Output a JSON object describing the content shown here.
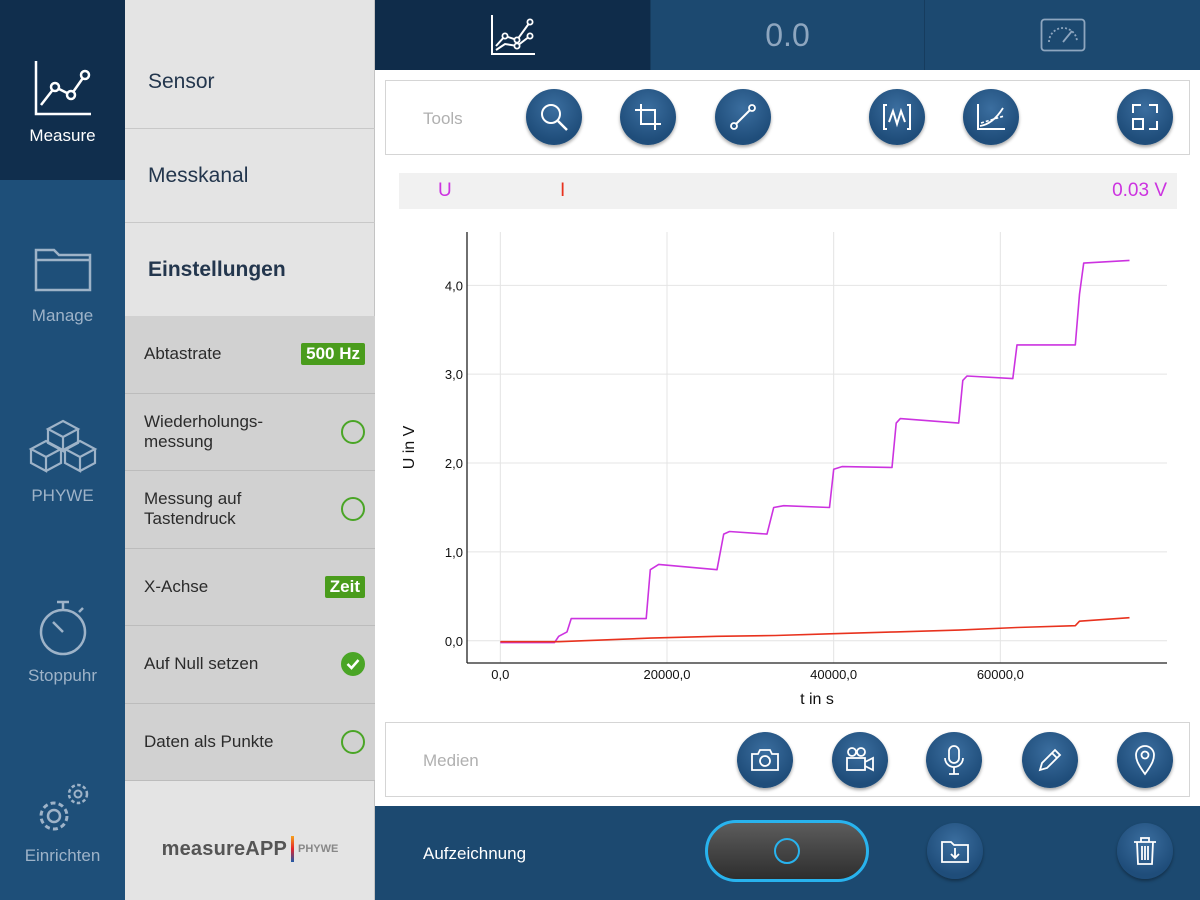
{
  "nav": {
    "items": [
      {
        "label": "Measure",
        "icon": "chart-line-icon",
        "active": true
      },
      {
        "label": "Manage",
        "icon": "folder-icon"
      },
      {
        "label": "PHYWE",
        "icon": "cubes-icon"
      },
      {
        "label": "Stoppuhr",
        "icon": "stopwatch-icon"
      },
      {
        "label": "Einrichten",
        "icon": "gears-icon"
      }
    ]
  },
  "settings": {
    "sections": [
      "Sensor",
      "Messkanal",
      "Einstellungen"
    ],
    "rows": [
      {
        "label": "Abtastrate",
        "badge": "500 Hz"
      },
      {
        "label": "Wiederholungs-\nmessung",
        "checked": false
      },
      {
        "label": "Messung auf\nTastendruck",
        "checked": false
      },
      {
        "label": "X-Achse",
        "badge": "Zeit"
      },
      {
        "label": "Auf Null setzen",
        "checked": true
      },
      {
        "label": "Daten als Punkte",
        "checked": false
      }
    ],
    "logo": {
      "main": "measureAPP",
      "sub": "PHYWE"
    }
  },
  "tabs": {
    "display_value": "0.0",
    "icons": [
      "graph-tab-icon",
      "digital-display-icon",
      "gauge-icon"
    ]
  },
  "tools": {
    "label": "Tools",
    "buttons": [
      "zoom-icon",
      "crop-icon",
      "line-tool-icon",
      "fit-curve-icon",
      "tangent-icon",
      "fullscreen-icon"
    ]
  },
  "media": {
    "label": "Medien",
    "buttons": [
      "camera-icon",
      "video-camera-icon",
      "microphone-icon",
      "pencil-icon",
      "location-pin-icon"
    ]
  },
  "channels": {
    "u": {
      "label": "U",
      "color": "#cc33e0"
    },
    "i": {
      "label": "I",
      "color": "#e8321e"
    },
    "readout": "0.03 V"
  },
  "bottom": {
    "label": "Aufzeichnung",
    "buttons": [
      "record-button",
      "export-folder-icon",
      "trash-icon"
    ]
  },
  "chart_data": {
    "type": "line",
    "xlabel": "t in s",
    "ylabel": "U in V",
    "xlim": [
      -4000,
      80000
    ],
    "ylim": [
      -0.25,
      4.6
    ],
    "xticks": [
      0,
      20000,
      40000,
      60000
    ],
    "xtick_labels": [
      "0,0",
      "20000,0",
      "40000,0",
      "60000,0"
    ],
    "yticks": [
      0,
      1,
      2,
      3,
      4
    ],
    "ytick_labels": [
      "0,0",
      "1,0",
      "2,0",
      "3,0",
      "4,0"
    ],
    "grid": true,
    "series": [
      {
        "name": "U",
        "color": "#cc33e0",
        "x": [
          0,
          6500,
          7000,
          8000,
          8500,
          17500,
          18000,
          19000,
          26000,
          26800,
          27500,
          32000,
          32800,
          34000,
          39500,
          40000,
          41000,
          47000,
          47500,
          48000,
          55000,
          55500,
          56000,
          61500,
          62000,
          69000,
          69500,
          70000,
          75500
        ],
        "y": [
          -0.02,
          -0.02,
          0.05,
          0.1,
          0.25,
          0.25,
          0.8,
          0.86,
          0.8,
          1.2,
          1.23,
          1.2,
          1.5,
          1.52,
          1.5,
          1.93,
          1.96,
          1.95,
          2.45,
          2.5,
          2.45,
          2.93,
          2.98,
          2.95,
          3.33,
          3.33,
          3.9,
          4.25,
          4.28
        ]
      },
      {
        "name": "I",
        "color": "#e8321e",
        "x": [
          0,
          7000,
          18000,
          26000,
          33000,
          40000,
          47500,
          55000,
          62000,
          69000,
          69500,
          75500
        ],
        "y": [
          -0.01,
          -0.01,
          0.03,
          0.05,
          0.06,
          0.08,
          0.1,
          0.12,
          0.15,
          0.17,
          0.22,
          0.26
        ]
      }
    ]
  }
}
